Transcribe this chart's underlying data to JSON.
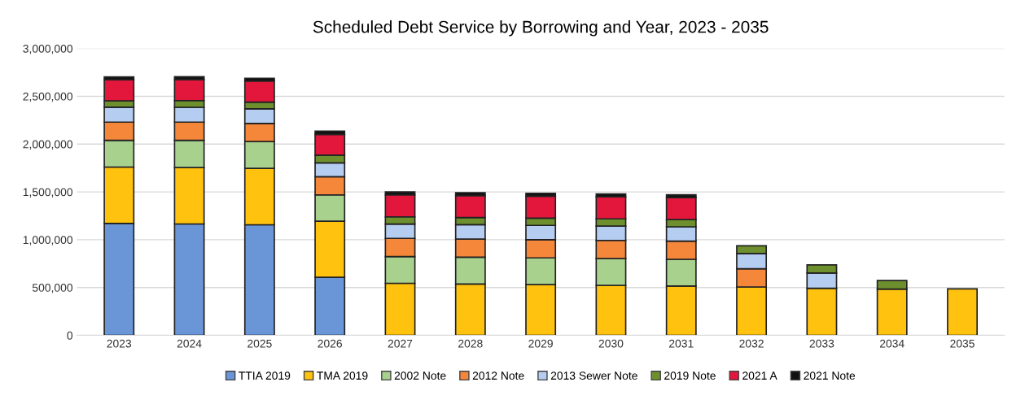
{
  "chart_data": {
    "type": "bar",
    "stacked": true,
    "title": "Scheduled Debt Service by Borrowing and Year, 2023 - 2035",
    "categories": [
      "2023",
      "2024",
      "2025",
      "2026",
      "2027",
      "2028",
      "2029",
      "2030",
      "2031",
      "2032",
      "2033",
      "2034",
      "2035"
    ],
    "series": [
      {
        "name": "TTIA 2019",
        "color": "#6a96d8",
        "values": [
          1170000,
          1165000,
          1156000,
          607000,
          null,
          null,
          null,
          null,
          null,
          null,
          null,
          null,
          null
        ]
      },
      {
        "name": "TMA 2019",
        "color": "#ffc20e",
        "values": [
          590000,
          590000,
          590000,
          587000,
          544000,
          537000,
          530000,
          523000,
          515000,
          506000,
          492000,
          483000,
          486000
        ]
      },
      {
        "name": "2002 Note",
        "color": "#a9d18e",
        "values": [
          280000,
          285000,
          280000,
          275000,
          280000,
          280000,
          280000,
          280000,
          280000,
          null,
          null,
          null,
          null
        ]
      },
      {
        "name": "2012 Note",
        "color": "#f4873a",
        "values": [
          190000,
          190000,
          190000,
          190000,
          190000,
          190000,
          190000,
          190000,
          190000,
          190000,
          null,
          null,
          null
        ]
      },
      {
        "name": "2013 Sewer Note",
        "color": "#b4cdf0",
        "values": [
          156000,
          155000,
          153000,
          145000,
          150000,
          150000,
          150000,
          150000,
          150000,
          160000,
          160000,
          null,
          null
        ]
      },
      {
        "name": "2019 Note",
        "color": "#6e8f2e",
        "values": [
          67000,
          70000,
          70000,
          80000,
          75000,
          75000,
          75000,
          75000,
          75000,
          80000,
          85000,
          90000,
          null
        ]
      },
      {
        "name": "2021 A",
        "color": "#e3173c",
        "values": [
          220000,
          220000,
          220000,
          217000,
          230000,
          230000,
          230000,
          230000,
          230000,
          null,
          null,
          null,
          null
        ]
      },
      {
        "name": "2021 Note",
        "color": "#111111",
        "values": [
          30000,
          30000,
          30000,
          35000,
          30000,
          30000,
          30000,
          30000,
          30000,
          null,
          null,
          null,
          null
        ]
      }
    ],
    "ylim": [
      0,
      3000000
    ],
    "yticks": [
      {
        "value": 0,
        "label": "0"
      },
      {
        "value": 500000,
        "label": "500,000"
      },
      {
        "value": 1000000,
        "label": "1,000,000"
      },
      {
        "value": 1500000,
        "label": "1,500,000"
      },
      {
        "value": 2000000,
        "label": "2,000,000"
      },
      {
        "value": 2500000,
        "label": "2,500,000"
      },
      {
        "value": 3000000,
        "label": "3,000,000"
      }
    ],
    "grid": "y",
    "legend": "bottom"
  }
}
